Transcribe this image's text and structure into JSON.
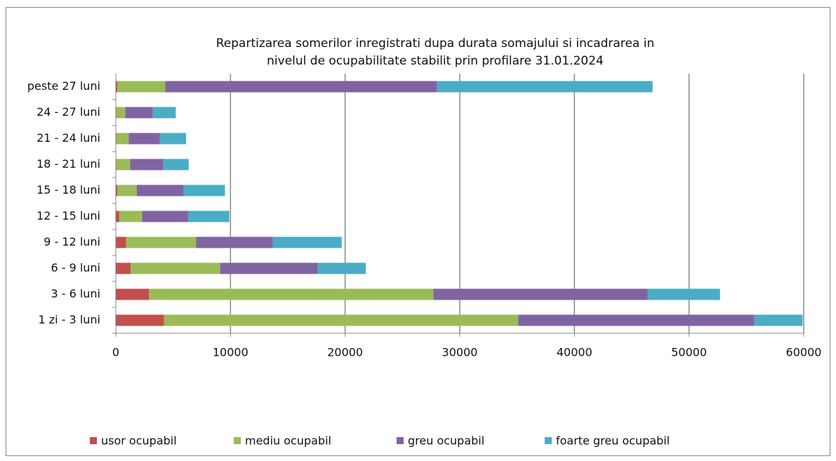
{
  "chart_data": {
    "type": "stacked-barh",
    "title": [
      "Repartizarea somerilor inregistrati dupa  durata somajului si incadrarea in",
      "nivelul de ocupabilitate stabilit prin profilare 31.01.2024"
    ],
    "categories": [
      "1 zi - 3 luni",
      "3 - 6 luni",
      "6 - 9 luni",
      "9 - 12 luni",
      "12 - 15 luni",
      "15 - 18 luni",
      "18 - 21 luni",
      "21 - 24 luni",
      "24 - 27 luni",
      "peste 27 luni"
    ],
    "series": [
      {
        "name": "usor ocupabil",
        "color": "#c0504d",
        "values": [
          4200,
          2900,
          1300,
          900,
          300,
          120,
          50,
          30,
          30,
          120
        ]
      },
      {
        "name": "mediu ocupabil",
        "color": "#9bbb59",
        "values": [
          30900,
          24800,
          7800,
          6100,
          2000,
          1700,
          1200,
          1100,
          800,
          4200
        ]
      },
      {
        "name": "greu ocupabil",
        "color": "#8064a2",
        "values": [
          20600,
          18700,
          8500,
          6700,
          4000,
          4100,
          2900,
          2700,
          2400,
          23700
        ]
      },
      {
        "name": "foarte greu ocupabil",
        "color": "#4bacc6",
        "values": [
          4200,
          6300,
          4200,
          6000,
          3600,
          3600,
          2200,
          2300,
          2000,
          18800
        ]
      }
    ],
    "xlim": [
      0,
      60000
    ],
    "xticks": [
      0,
      10000,
      20000,
      30000,
      40000,
      50000,
      60000
    ],
    "grid": true,
    "legend": "bottom"
  }
}
